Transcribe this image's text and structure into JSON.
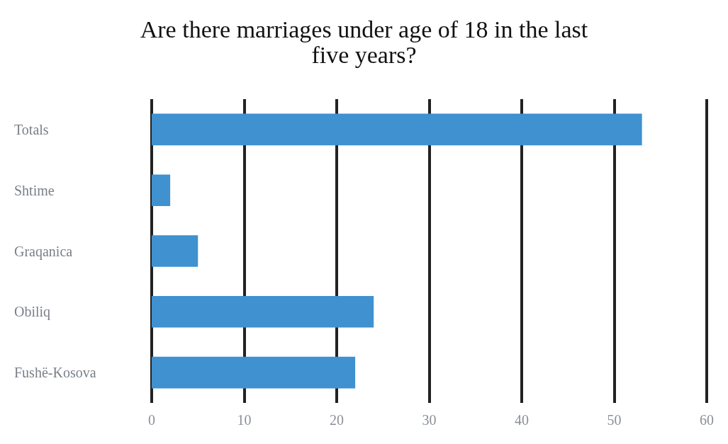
{
  "chart_data": {
    "type": "bar",
    "orientation": "horizontal",
    "title": "Are there marriages under age of 18 in the last\nfive years?",
    "categories": [
      "Totals",
      "Shtime",
      "Graqanica",
      "Obiliq",
      "Fushë-Kosova"
    ],
    "values": [
      53,
      2,
      5,
      24,
      22
    ],
    "color": "#3f91cf",
    "xlim": [
      0,
      60
    ],
    "xticks": [
      0,
      10,
      20,
      30,
      40,
      50,
      60
    ],
    "grid": "x"
  }
}
